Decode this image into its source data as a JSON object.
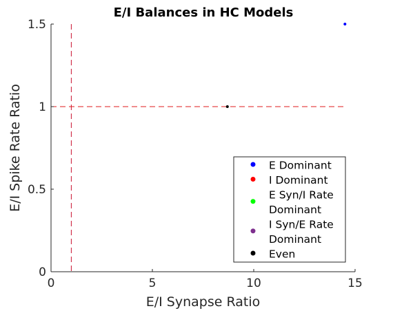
{
  "chart_data": {
    "type": "scatter",
    "title": "E/I Balances in HC Models",
    "xlabel": "E/I Synapse Ratio",
    "ylabel": "E/I Spike Rate Ratio",
    "xlim": [
      0,
      15
    ],
    "ylim": [
      0,
      1.5
    ],
    "xticks": [
      0,
      5,
      10,
      15
    ],
    "xtick_labels": [
      "0",
      "5",
      "10",
      "15"
    ],
    "yticks": [
      0,
      0.5,
      1,
      1.5
    ],
    "ytick_labels": [
      "0",
      "0.5",
      "1",
      "1.5"
    ],
    "grid": false,
    "legend_position": "bottom-right",
    "series": [
      {
        "name": "E Dominant",
        "color": "#0000ff",
        "points": [
          [
            14.5,
            1.5
          ]
        ]
      },
      {
        "name": "I Dominant",
        "color": "#ff0000",
        "points": []
      },
      {
        "name": "E Syn/I Rate Dominant",
        "color": "#00ff00",
        "points": []
      },
      {
        "name": "I Syn/E Rate Dominant",
        "color": "#7e2f8e",
        "points": []
      },
      {
        "name": "Even",
        "color": "#000000",
        "points": [
          [
            8.7,
            1.0
          ]
        ]
      }
    ],
    "reference_lines": [
      {
        "orientation": "vertical",
        "value": 1,
        "color": "#c8102e",
        "style": "dashed"
      },
      {
        "orientation": "horizontal",
        "value": 1,
        "color": "#e0181b",
        "style": "dashed"
      }
    ],
    "legend_entries": [
      {
        "lines": [
          "E Dominant"
        ],
        "color": "#0000ff"
      },
      {
        "lines": [
          "I Dominant"
        ],
        "color": "#ff0000"
      },
      {
        "lines": [
          "E Syn/I Rate",
          "Dominant"
        ],
        "color": "#00ff00"
      },
      {
        "lines": [
          "I Syn/E Rate",
          "Dominant"
        ],
        "color": "#7e2f8e"
      },
      {
        "lines": [
          "Even"
        ],
        "color": "#000000"
      }
    ]
  }
}
